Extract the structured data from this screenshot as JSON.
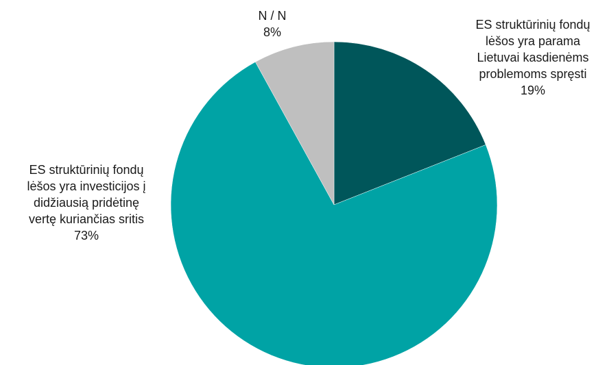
{
  "chart_data": {
    "type": "pie",
    "title": "",
    "slices": [
      {
        "label_lines": [
          "ES struktūrinių fondų",
          "lėšos yra parama",
          "Lietuvai kasdienėms",
          "problemoms spręsti"
        ],
        "value": 19,
        "value_label": "19%",
        "color": "#00565a"
      },
      {
        "label_lines": [
          "ES struktūrinių fondų",
          "lėšos yra investicijos į",
          "didžiausią pridėtinę",
          "vertę kuriančias sritis"
        ],
        "value": 73,
        "value_label": "73%",
        "color": "#00a3a5"
      },
      {
        "label_lines": [
          "N / N"
        ],
        "value": 8,
        "value_label": "8%",
        "color": "#bfbfbf"
      }
    ],
    "start_angle": "12 o'clock",
    "direction": "clockwise",
    "legend": "none"
  }
}
